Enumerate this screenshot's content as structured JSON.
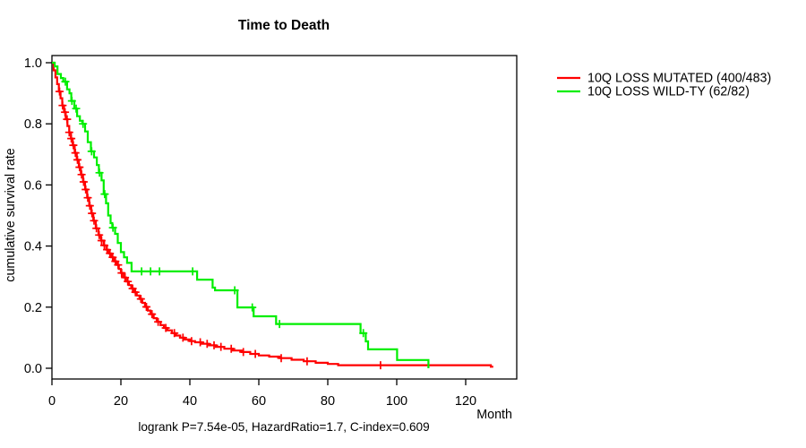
{
  "title": "Time to Death",
  "chart_data": {
    "type": "line",
    "subtype": "kaplan-meier-step-survival",
    "title": "Time to Death",
    "xlabel": "Month",
    "ylabel": "cumulative survival rate",
    "xlim": [
      0,
      135
    ],
    "ylim": [
      0.0,
      1.0
    ],
    "xticks": [
      0,
      20,
      40,
      60,
      80,
      100,
      120
    ],
    "yticks": [
      0.0,
      0.2,
      0.4,
      0.6,
      0.8,
      1.0
    ],
    "grid": false,
    "legend_position": "right-outside-top",
    "annotation": "logrank P=7.54e-05, HazardRatio=1.7, C-index=0.609",
    "frame_color": "#000000",
    "series": [
      {
        "name": "10Q LOSS MUTATED (400/483)",
        "color": "#ff0000",
        "end_month": 128,
        "steps": [
          [
            0,
            1.0
          ],
          [
            0.5,
            0.975
          ],
          [
            1.0,
            0.952
          ],
          [
            1.5,
            0.93
          ],
          [
            2.0,
            0.906
          ],
          [
            2.5,
            0.884
          ],
          [
            3.0,
            0.86
          ],
          [
            3.5,
            0.838
          ],
          [
            4.0,
            0.815
          ],
          [
            4.5,
            0.793
          ],
          [
            5.0,
            0.772
          ],
          [
            5.5,
            0.752
          ],
          [
            6.0,
            0.73
          ],
          [
            6.6,
            0.705
          ],
          [
            7.2,
            0.682
          ],
          [
            7.8,
            0.658
          ],
          [
            8.4,
            0.634
          ],
          [
            9.0,
            0.61
          ],
          [
            9.6,
            0.585
          ],
          [
            10.2,
            0.558
          ],
          [
            10.8,
            0.532
          ],
          [
            11.4,
            0.507
          ],
          [
            12.0,
            0.483
          ],
          [
            12.7,
            0.458
          ],
          [
            13.5,
            0.436
          ],
          [
            14.2,
            0.418
          ],
          [
            15.0,
            0.402
          ],
          [
            15.8,
            0.388
          ],
          [
            16.5,
            0.376
          ],
          [
            17.2,
            0.363
          ],
          [
            18.0,
            0.35
          ],
          [
            18.7,
            0.338
          ],
          [
            19.4,
            0.325
          ],
          [
            20.0,
            0.312
          ],
          [
            20.7,
            0.297
          ],
          [
            21.5,
            0.284
          ],
          [
            22.3,
            0.272
          ],
          [
            23.0,
            0.261
          ],
          [
            23.8,
            0.249
          ],
          [
            24.6,
            0.238
          ],
          [
            25.4,
            0.227
          ],
          [
            26.2,
            0.214
          ],
          [
            27.0,
            0.201
          ],
          [
            27.8,
            0.189
          ],
          [
            28.6,
            0.177
          ],
          [
            29.5,
            0.164
          ],
          [
            30.4,
            0.152
          ],
          [
            31.5,
            0.141
          ],
          [
            32.5,
            0.132
          ],
          [
            33.5,
            0.124
          ],
          [
            34.8,
            0.115
          ],
          [
            36.0,
            0.107
          ],
          [
            37.2,
            0.1
          ],
          [
            38.5,
            0.094
          ],
          [
            40.0,
            0.089
          ],
          [
            41.5,
            0.085
          ],
          [
            43.5,
            0.08
          ],
          [
            45.5,
            0.075
          ],
          [
            47.5,
            0.07
          ],
          [
            50.0,
            0.064
          ],
          [
            52.5,
            0.058
          ],
          [
            55.0,
            0.053
          ],
          [
            57.5,
            0.047
          ],
          [
            60.0,
            0.042
          ],
          [
            63.0,
            0.038
          ],
          [
            66.0,
            0.033
          ],
          [
            69.5,
            0.028
          ],
          [
            73.0,
            0.023
          ],
          [
            76.5,
            0.018
          ],
          [
            80.0,
            0.014
          ],
          [
            83.0,
            0.01
          ],
          [
            127.3,
            0.005
          ]
        ],
        "censor_marks": [
          2.2,
          3.1,
          3.8,
          4.4,
          5.0,
          5.6,
          6.2,
          6.8,
          7.4,
          8.0,
          8.6,
          9.2,
          9.8,
          10.4,
          11.0,
          11.6,
          12.2,
          12.9,
          13.7,
          14.4,
          15.2,
          16.0,
          16.8,
          17.6,
          18.4,
          19.2,
          20.2,
          21.2,
          22.0,
          23.4,
          24.2,
          25.8,
          27.4,
          29.0,
          30.8,
          33.0,
          35.5,
          38.0,
          40.5,
          43.0,
          45.0,
          47.0,
          49.0,
          52.0,
          55.5,
          59.0,
          66.5,
          74.0,
          95.3
        ]
      },
      {
        "name": "10Q LOSS WILD-TY (62/82)",
        "color": "#00ee00",
        "end_month": 109.2,
        "steps": [
          [
            0,
            1.0
          ],
          [
            0.8,
            0.988
          ],
          [
            1.6,
            0.963
          ],
          [
            2.6,
            0.95
          ],
          [
            3.3,
            0.938
          ],
          [
            4.4,
            0.913
          ],
          [
            5.1,
            0.9
          ],
          [
            5.6,
            0.875
          ],
          [
            6.5,
            0.85
          ],
          [
            7.3,
            0.825
          ],
          [
            8.1,
            0.81
          ],
          [
            8.8,
            0.8
          ],
          [
            9.6,
            0.775
          ],
          [
            10.4,
            0.74
          ],
          [
            11.3,
            0.71
          ],
          [
            12.2,
            0.69
          ],
          [
            13.0,
            0.665
          ],
          [
            13.6,
            0.64
          ],
          [
            14.4,
            0.615
          ],
          [
            15.0,
            0.57
          ],
          [
            15.7,
            0.54
          ],
          [
            16.3,
            0.5
          ],
          [
            17.0,
            0.475
          ],
          [
            17.5,
            0.46
          ],
          [
            18.3,
            0.44
          ],
          [
            19.1,
            0.41
          ],
          [
            20.0,
            0.38
          ],
          [
            20.9,
            0.363
          ],
          [
            21.8,
            0.345
          ],
          [
            23.1,
            0.317
          ],
          [
            42.1,
            0.29
          ],
          [
            46.6,
            0.264
          ],
          [
            47.3,
            0.255
          ],
          [
            53.8,
            0.199
          ],
          [
            58.5,
            0.17
          ],
          [
            65.0,
            0.145
          ],
          [
            89.5,
            0.115
          ],
          [
            91.0,
            0.088
          ],
          [
            91.7,
            0.062
          ],
          [
            100.1,
            0.027
          ],
          [
            109.2,
            0.0
          ]
        ],
        "censor_marks": [
          3.9,
          5.8,
          7.0,
          9.0,
          11.5,
          13.8,
          15.3,
          17.7,
          26.0,
          28.6,
          31.2,
          40.8,
          53.0,
          58.1,
          66.0,
          90.3
        ]
      }
    ]
  }
}
